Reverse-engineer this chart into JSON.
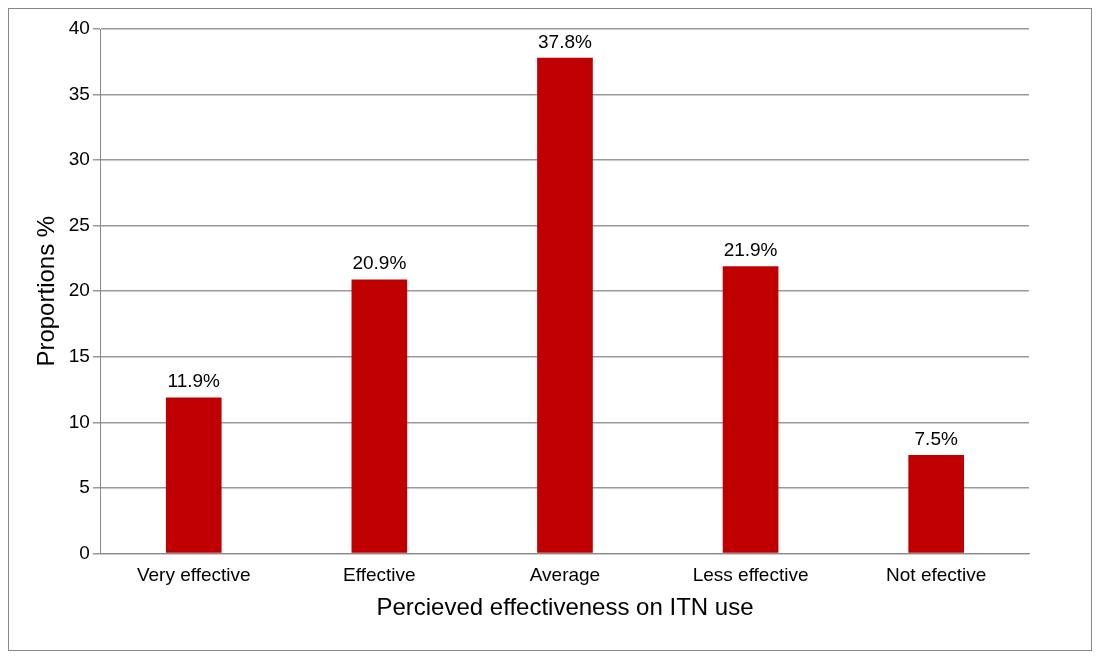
{
  "chart_data": {
    "type": "bar",
    "xlabel": "Percieved effectiveness on ITN use",
    "ylabel": "Proportions %",
    "categories": [
      "Very effective",
      "Effective",
      "Average",
      "Less effective",
      "Not efective"
    ],
    "values": [
      11.9,
      20.9,
      37.8,
      21.9,
      7.5
    ],
    "value_labels": [
      "11.9%",
      "20.9%",
      "37.8%",
      "21.9%",
      "7.5%"
    ],
    "color": "#c00000",
    "ylim": [
      0,
      40
    ],
    "yticks": [
      0,
      5,
      10,
      15,
      20,
      25,
      30,
      35,
      40
    ],
    "grid": "y",
    "legend": false
  }
}
